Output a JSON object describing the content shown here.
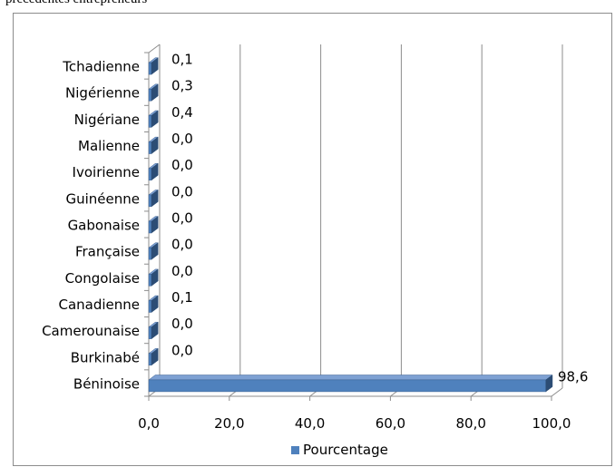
{
  "header_text": "précédentes entrepreneurs",
  "chart_data": {
    "type": "bar",
    "orientation": "horizontal",
    "categories": [
      "Béninoise",
      "Burkinabé",
      "Camerounaise",
      "Canadienne",
      "Congolaise",
      "Française",
      "Gabonaise",
      "Guinéenne",
      "Ivoirienne",
      "Malienne",
      "Nigériane",
      "Nigérienne",
      "Tchadienne"
    ],
    "series": [
      {
        "name": "Pourcentage",
        "values": [
          98.6,
          0.0,
          0.0,
          0.1,
          0.0,
          0.0,
          0.0,
          0.0,
          0.0,
          0.0,
          0.4,
          0.3,
          0.1
        ],
        "value_labels": [
          "98,6",
          "0,0",
          "0,0",
          "0,1",
          "0,0",
          "0,0",
          "0,0",
          "0,0",
          "0,0",
          "0,0",
          "0,4",
          "0,3",
          "0,1"
        ],
        "color": "#4f81bd"
      }
    ],
    "x_ticks": [
      "0,0",
      "20,0",
      "40,0",
      "60,0",
      "80,0",
      "100,0"
    ],
    "xlim": [
      0,
      100
    ],
    "grid": true,
    "legend_position": "bottom",
    "style": "3d"
  }
}
